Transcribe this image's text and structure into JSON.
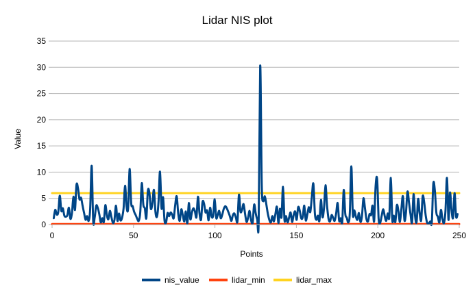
{
  "chart_data": {
    "type": "line",
    "title": "Lidar NIS plot",
    "xlabel": "Points",
    "ylabel": "Value",
    "xlim": [
      0,
      250
    ],
    "ylim": [
      0,
      35
    ],
    "x_ticks": [
      0,
      50,
      100,
      150,
      200,
      250
    ],
    "y_ticks": [
      0,
      5,
      10,
      15,
      20,
      25,
      30,
      35
    ],
    "grid": "horizontal",
    "legend_position": "bottom",
    "series": [
      {
        "name": "nis_value",
        "color": "#004586",
        "values": [
          1.2,
          2.8,
          1.9,
          2.4,
          5.5,
          2.6,
          3.1,
          1.7,
          1.5,
          1.8,
          3.2,
          1.1,
          2.2,
          5.3,
          2.8,
          7.6,
          6.9,
          4.8,
          5.1,
          3.6,
          2.2,
          0.9,
          1.6,
          0.7,
          2.9,
          11.2,
          0.6,
          1.4,
          3.6,
          3.2,
          2.0,
          0.4,
          1.2,
          0.5,
          3.7,
          1.8,
          1.0,
          2.6,
          1.4,
          0.3,
          0.9,
          3.6,
          0.7,
          2.1,
          0.8,
          1.3,
          3.1,
          7.4,
          3.4,
          3.1,
          10.6,
          4.1,
          3.5,
          2.4,
          1.8,
          1.1,
          0.7,
          2.3,
          7.9,
          3.8,
          3.1,
          1.2,
          6.4,
          6.1,
          3.0,
          4.1,
          6.6,
          2.4,
          1.5,
          4.2,
          10.1,
          3.1,
          5.2,
          0.7,
          0.4,
          2.2,
          1.6,
          2.3,
          1.9,
          1.2,
          3.7,
          5.4,
          2.1,
          0.7,
          2.9,
          1.8,
          0.6,
          2.5,
          0.2,
          4.1,
          1.0,
          2.3,
          3.1,
          2.5,
          1.4,
          5.3,
          2.2,
          0.9,
          4.3,
          4.0,
          2.3,
          2.7,
          0.8,
          3.2,
          1.5,
          1.7,
          4.8,
          1.3,
          1.8,
          2.6,
          1.2,
          1.9,
          3.0,
          3.5,
          3.1,
          2.4,
          1.6,
          0.7,
          1.8,
          2.1,
          1.3,
          0.6,
          5.7,
          2.5,
          2.8,
          3.9,
          2.1,
          0.5,
          1.3,
          2.6,
          0.8,
          0.3,
          3.8,
          2.2,
          1.0,
          0.6,
          30.3,
          7.6,
          4.5,
          5.4,
          3.9,
          2.1,
          0.9,
          0.4,
          1.6,
          0.6,
          2.0,
          3.4,
          0.3,
          3.0,
          1.4,
          7.2,
          0.8,
          1.6,
          0.4,
          1.3,
          2.3,
          0.5,
          1.8,
          2.5,
          0.9,
          3.3,
          2.7,
          1.2,
          1.4,
          3.6,
          0.8,
          1.9,
          3.3,
          2.4,
          5.3,
          7.8,
          2.1,
          0.9,
          1.7,
          0.7,
          4.7,
          1.4,
          3.1,
          7.5,
          3.6,
          1.1,
          0.6,
          1.8,
          1.3,
          0.7,
          2.1,
          4.1,
          0.7,
          1.2,
          0.4,
          6.6,
          2.1,
          1.3,
          0.4,
          2.1,
          11.1,
          1.9,
          2.7,
          1.5,
          0.9,
          2.2,
          0.5,
          1.6,
          5.0,
          3.1,
          1.0,
          0.6,
          2.0,
          1.8,
          3.6,
          0.6,
          7.3,
          8.7,
          1.1,
          0.3,
          1.7,
          2.9,
          1.6,
          0.7,
          2.1,
          1.4,
          8.9,
          0.8,
          1.7,
          0.5,
          3.7,
          2.6,
          0.5,
          3.1,
          5.4,
          0.8,
          2.3,
          6.3,
          4.2,
          1.9,
          0.4,
          5.8,
          1.6,
          0.5,
          4.9,
          2.2,
          0.8,
          5.4,
          4.2,
          1.7,
          0.3,
          0.2,
          0.6,
          0.4,
          7.8,
          6.5,
          2.3,
          1.5,
          0.4,
          2.8,
          1.1,
          0.3,
          2.6,
          8.9,
          0.9,
          6.1,
          2.7,
          1.3,
          6.0,
          1.5,
          2.0
        ]
      },
      {
        "name": "lidar_min",
        "color": "#ff420e",
        "values": [
          0.103,
          0.103
        ]
      },
      {
        "name": "lidar_max",
        "color": "#ffd320",
        "values": [
          5.991,
          5.991
        ]
      }
    ]
  }
}
